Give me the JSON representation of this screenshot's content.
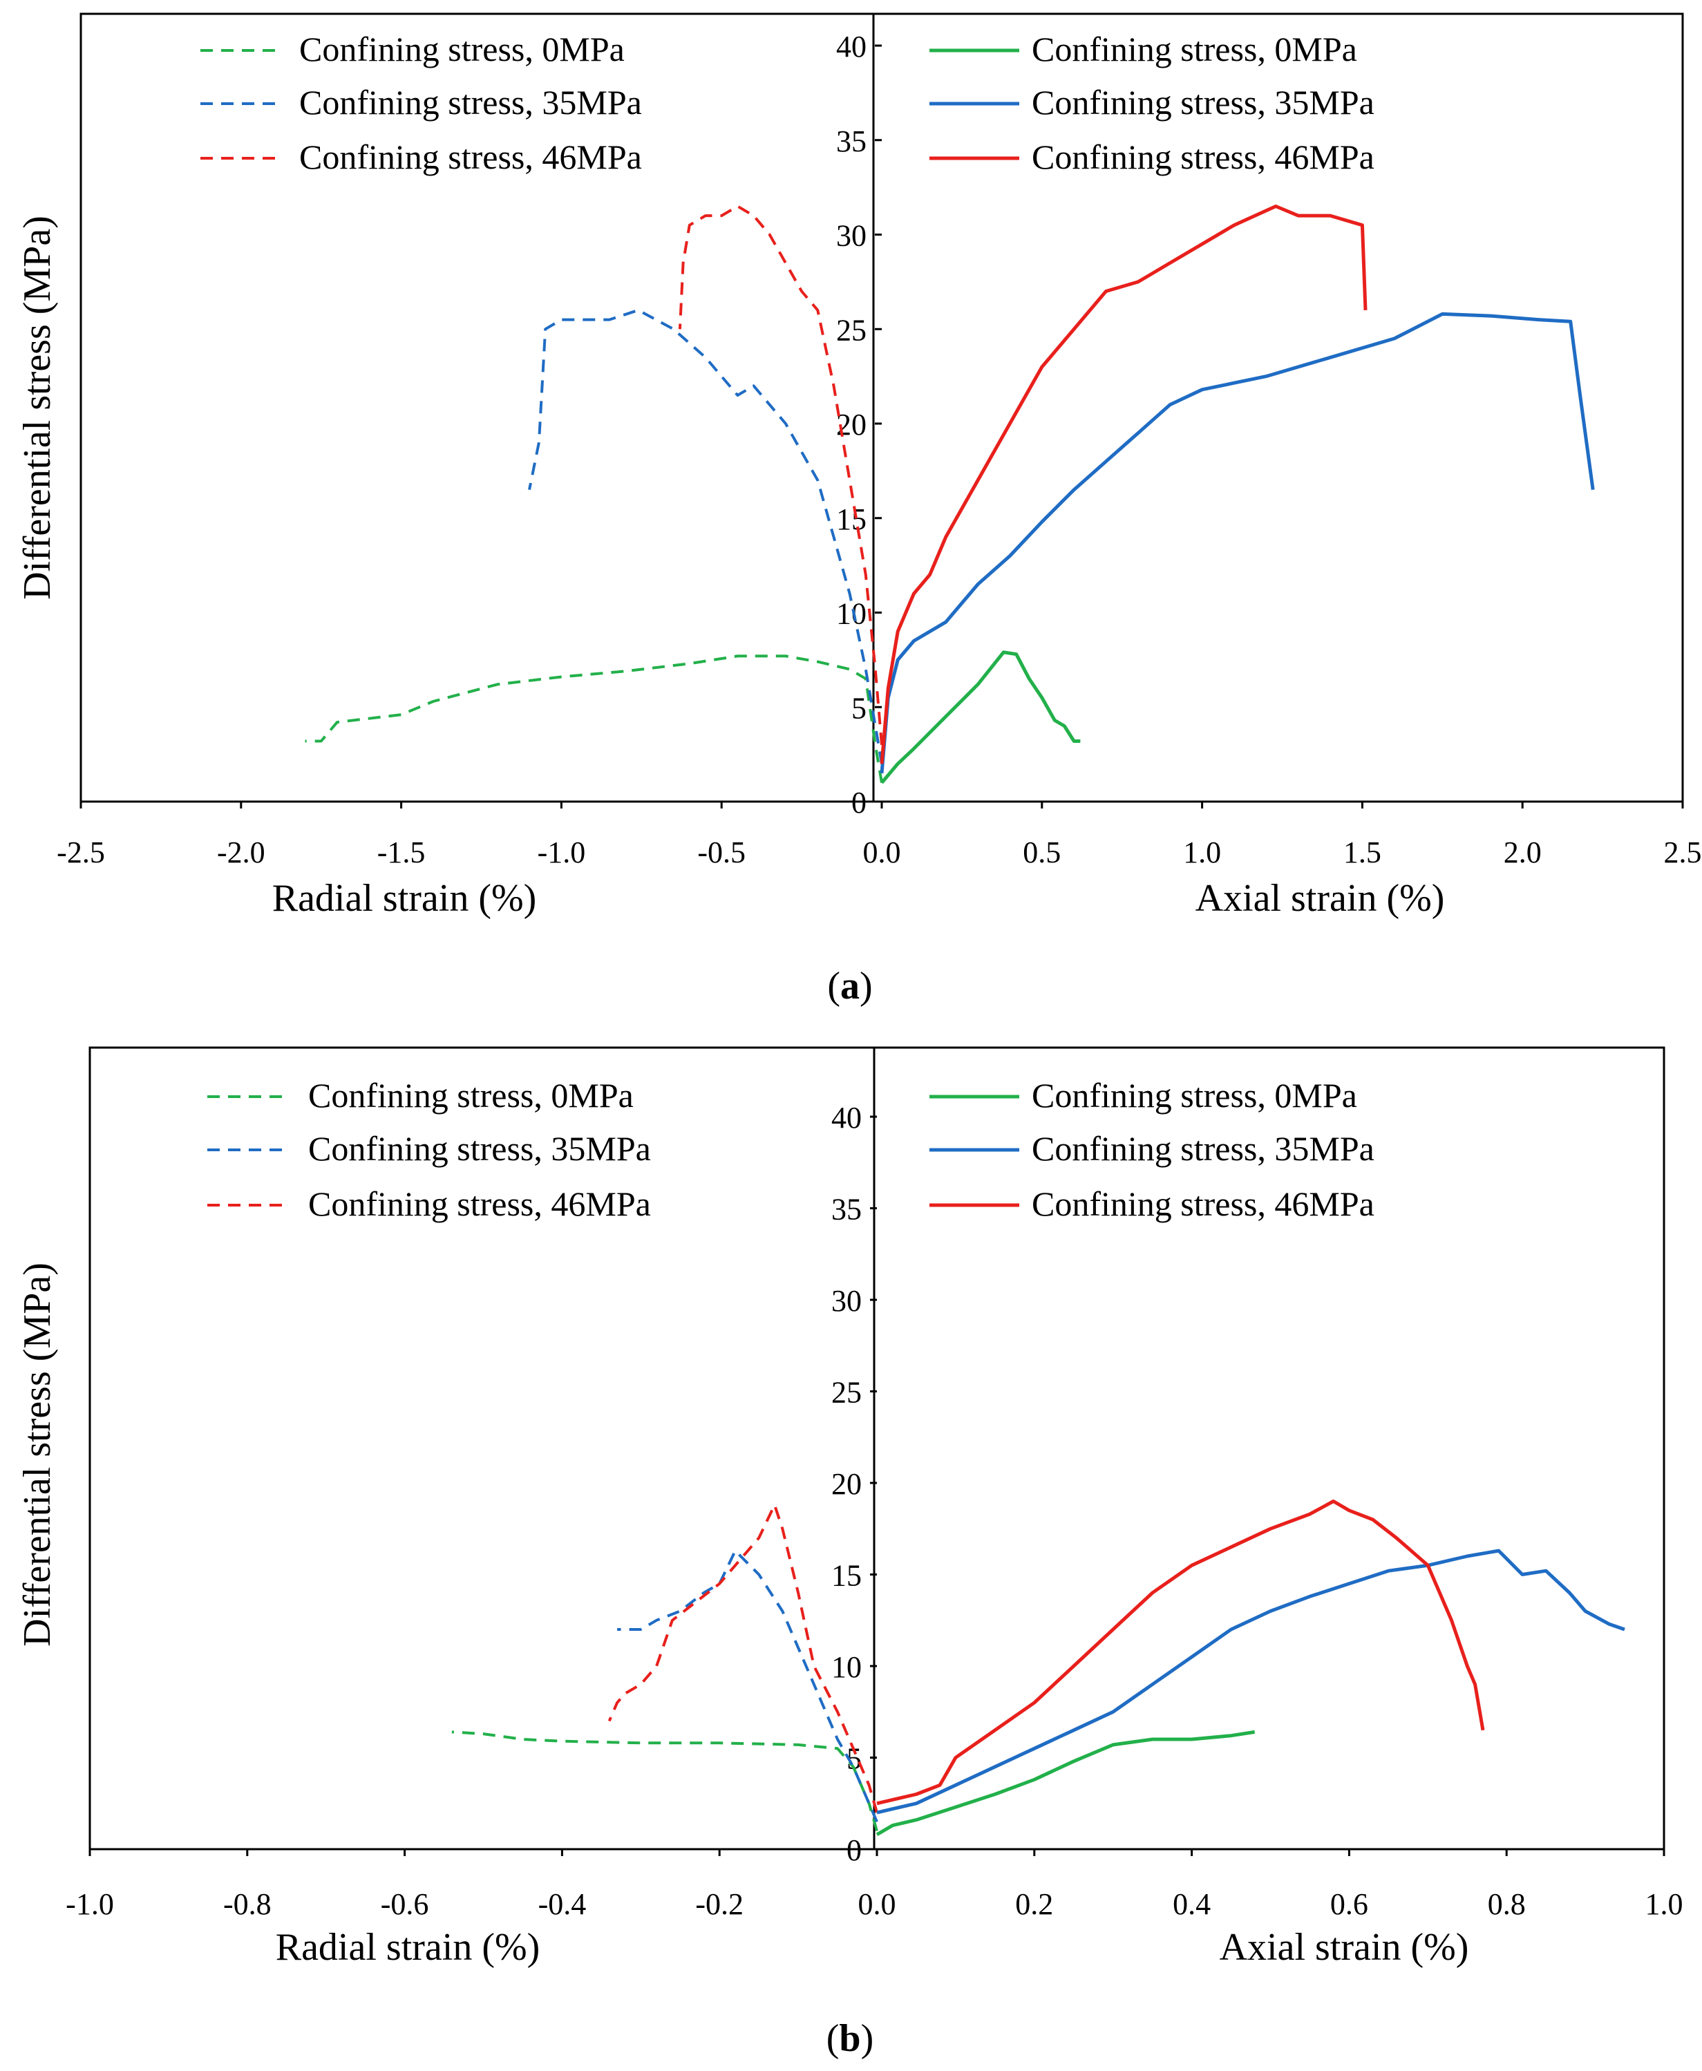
{
  "chart_data": [
    {
      "id": "a",
      "type": "line",
      "caption_open": "(",
      "caption_letter": "a",
      "caption_close": ")",
      "ylabel": "Differential stress (MPa)",
      "xlabel_left": "Radial strain (%)",
      "xlabel_right": "Axial strain (%)",
      "xlim": [
        -2.5,
        2.5
      ],
      "ylim": [
        0,
        43
      ],
      "xticks": [
        "-2.5",
        "-2.0",
        "-1.5",
        "-1.0",
        "-0.5",
        "0.0",
        "0.5",
        "1.0",
        "1.5",
        "2.0",
        "2.5"
      ],
      "xtick_values": [
        -2.5,
        -2.0,
        -1.5,
        -1.0,
        -0.5,
        0.0,
        0.5,
        1.0,
        1.5,
        2.0,
        2.5
      ],
      "yticks": [
        "0",
        "5",
        "10",
        "15",
        "20",
        "25",
        "30",
        "35",
        "40"
      ],
      "ytick_values": [
        0,
        5,
        10,
        15,
        20,
        25,
        30,
        35,
        40
      ],
      "legend_left": [
        "Confining stress, 0MPa",
        "Confining stress, 35MPa",
        "Confining stress, 46MPa"
      ],
      "legend_right": [
        "Confining stress, 0MPa",
        "Confining stress, 35MPa",
        "Confining stress, 46MPa"
      ],
      "series": [
        {
          "name": "Confining stress, 0MPa",
          "kind": "radial",
          "color": "#22b04a",
          "dashed": true,
          "x": [
            0.0,
            -0.02,
            -0.05,
            -0.1,
            -0.2,
            -0.3,
            -0.45,
            -0.6,
            -0.8,
            -1.0,
            -1.2,
            -1.4,
            -1.5,
            -1.6,
            -1.7,
            -1.75,
            -1.8
          ],
          "y": [
            1.0,
            3.0,
            6.5,
            7.0,
            7.4,
            7.7,
            7.7,
            7.3,
            6.9,
            6.6,
            6.2,
            5.3,
            4.6,
            4.4,
            4.2,
            3.2,
            3.2
          ]
        },
        {
          "name": "Confining stress, 35MPa",
          "kind": "radial",
          "color": "#1f6cc4",
          "dashed": true,
          "x": [
            0.0,
            -0.02,
            -0.05,
            -0.1,
            -0.15,
            -0.2,
            -0.3,
            -0.4,
            -0.45,
            -0.55,
            -0.65,
            -0.76,
            -0.85,
            -1.0,
            -1.05,
            -1.07,
            -1.1
          ],
          "y": [
            2.0,
            4.0,
            7.0,
            11.0,
            14.0,
            17.0,
            20.0,
            22.0,
            21.5,
            23.5,
            25.0,
            26.0,
            25.5,
            25.5,
            25.0,
            19.0,
            16.5
          ]
        },
        {
          "name": "Confining stress, 46MPa",
          "kind": "radial",
          "color": "#e8201c",
          "dashed": true,
          "x": [
            0.0,
            -0.02,
            -0.05,
            -0.1,
            -0.15,
            -0.2,
            -0.25,
            -0.3,
            -0.35,
            -0.4,
            -0.45,
            -0.5,
            -0.55,
            -0.6,
            -0.62,
            -0.63,
            -0.63
          ],
          "y": [
            3.0,
            7.0,
            12.0,
            17.0,
            22.0,
            26.0,
            27.0,
            28.5,
            30.0,
            31.0,
            31.5,
            31.0,
            31.0,
            30.5,
            28.5,
            25.0,
            25.0
          ]
        },
        {
          "name": "Confining stress, 0MPa",
          "kind": "axial",
          "color": "#22b04a",
          "dashed": false,
          "x": [
            0.0,
            0.05,
            0.1,
            0.2,
            0.3,
            0.38,
            0.42,
            0.46,
            0.5,
            0.54,
            0.57,
            0.6,
            0.62
          ],
          "y": [
            1.0,
            2.0,
            2.8,
            4.5,
            6.2,
            7.9,
            7.8,
            6.5,
            5.5,
            4.3,
            4.0,
            3.2,
            3.2
          ]
        },
        {
          "name": "Confining stress, 35MPa",
          "kind": "axial",
          "color": "#1f6cc4",
          "dashed": false,
          "x": [
            0.0,
            0.02,
            0.05,
            0.1,
            0.2,
            0.3,
            0.4,
            0.5,
            0.6,
            0.7,
            0.8,
            0.9,
            1.0,
            1.2,
            1.4,
            1.6,
            1.75,
            1.9,
            2.05,
            2.15,
            2.18,
            2.2,
            2.22
          ],
          "y": [
            1.5,
            5.5,
            7.5,
            8.5,
            9.5,
            11.5,
            13.0,
            14.8,
            16.5,
            18.0,
            19.5,
            21.0,
            21.8,
            22.5,
            23.5,
            24.5,
            25.8,
            25.7,
            25.5,
            25.4,
            21.5,
            19.0,
            16.5
          ]
        },
        {
          "name": "Confining stress, 46MPa",
          "kind": "axial",
          "color": "#e8201c",
          "dashed": false,
          "x": [
            0.0,
            0.02,
            0.05,
            0.1,
            0.15,
            0.2,
            0.3,
            0.4,
            0.5,
            0.6,
            0.7,
            0.8,
            0.9,
            1.0,
            1.1,
            1.23,
            1.3,
            1.4,
            1.5,
            1.51
          ],
          "y": [
            2.0,
            6.0,
            9.0,
            11.0,
            12.0,
            14.0,
            17.0,
            20.0,
            23.0,
            25.0,
            27.0,
            27.5,
            28.5,
            29.5,
            30.5,
            31.5,
            31.0,
            31.0,
            30.5,
            26.0
          ]
        }
      ]
    },
    {
      "id": "b",
      "type": "line",
      "caption_open": "(",
      "caption_letter": "b",
      "caption_close": ")",
      "ylabel": "Differential stress (MPa)",
      "xlabel_left": "Radial strain (%)",
      "xlabel_right": "Axial strain (%)",
      "xlim": [
        -1.0,
        1.0
      ],
      "ylim": [
        0,
        43
      ],
      "xticks": [
        "-1.0",
        "-0.8",
        "-0.6",
        "-0.4",
        "-0.2",
        "0.0",
        "0.2",
        "0.4",
        "0.6",
        "0.8",
        "1.0"
      ],
      "xtick_values": [
        -1.0,
        -0.8,
        -0.6,
        -0.4,
        -0.2,
        0.0,
        0.2,
        0.4,
        0.6,
        0.8,
        1.0
      ],
      "yticks": [
        "0",
        "5",
        "10",
        "15",
        "20",
        "25",
        "30",
        "35",
        "40"
      ],
      "ytick_values": [
        0,
        5,
        10,
        15,
        20,
        25,
        30,
        35,
        40
      ],
      "legend_left": [
        "Confining stress, 0MPa",
        "Confining stress, 35MPa",
        "Confining stress, 46MPa"
      ],
      "legend_right": [
        "Confining stress, 0MPa",
        "Confining stress, 35MPa",
        "Confining stress, 46MPa"
      ],
      "series": [
        {
          "name": "Confining stress, 0MPa",
          "kind": "radial",
          "color": "#22b04a",
          "dashed": true,
          "x": [
            0.0,
            -0.01,
            -0.03,
            -0.05,
            -0.1,
            -0.2,
            -0.3,
            -0.4,
            -0.45,
            -0.5,
            -0.54
          ],
          "y": [
            1.0,
            2.5,
            4.5,
            5.5,
            5.7,
            5.8,
            5.8,
            5.9,
            6.0,
            6.3,
            6.4
          ]
        },
        {
          "name": "Confining stress, 35MPa",
          "kind": "radial",
          "color": "#1f6cc4",
          "dashed": true,
          "x": [
            0.0,
            -0.01,
            -0.03,
            -0.05,
            -0.08,
            -0.1,
            -0.12,
            -0.15,
            -0.18,
            -0.2,
            -0.22,
            -0.25,
            -0.28,
            -0.3,
            -0.33
          ],
          "y": [
            1.5,
            2.5,
            4.5,
            6.0,
            9.0,
            11.0,
            13.0,
            15.0,
            16.3,
            14.5,
            14.0,
            13.0,
            12.5,
            12.0,
            12.0
          ]
        },
        {
          "name": "Confining stress, 46MPa",
          "kind": "radial",
          "color": "#e8201c",
          "dashed": true,
          "x": [
            0.0,
            -0.01,
            -0.03,
            -0.05,
            -0.08,
            -0.1,
            -0.12,
            -0.13,
            -0.15,
            -0.18,
            -0.2,
            -0.23,
            -0.26,
            -0.28,
            -0.3,
            -0.32,
            -0.33,
            -0.34
          ],
          "y": [
            2.0,
            3.5,
            5.5,
            7.5,
            10.0,
            14.0,
            17.5,
            18.8,
            17.0,
            15.5,
            14.5,
            13.5,
            12.5,
            10.0,
            9.0,
            8.5,
            8.0,
            7.0
          ]
        },
        {
          "name": "Confining stress, 0MPa",
          "kind": "axial",
          "color": "#22b04a",
          "dashed": false,
          "x": [
            0.0,
            0.02,
            0.05,
            0.1,
            0.15,
            0.2,
            0.25,
            0.3,
            0.35,
            0.4,
            0.45,
            0.48
          ],
          "y": [
            0.8,
            1.3,
            1.6,
            2.3,
            3.0,
            3.8,
            4.8,
            5.7,
            6.0,
            6.0,
            6.2,
            6.4
          ]
        },
        {
          "name": "Confining stress, 35MPa",
          "kind": "axial",
          "color": "#1f6cc4",
          "dashed": false,
          "x": [
            0.0,
            0.02,
            0.05,
            0.1,
            0.15,
            0.2,
            0.25,
            0.3,
            0.35,
            0.4,
            0.45,
            0.5,
            0.55,
            0.6,
            0.65,
            0.7,
            0.75,
            0.79,
            0.82,
            0.85,
            0.88,
            0.9,
            0.93,
            0.95
          ],
          "y": [
            2.0,
            2.2,
            2.5,
            3.5,
            4.5,
            5.5,
            6.5,
            7.5,
            9.0,
            10.5,
            12.0,
            13.0,
            13.8,
            14.5,
            15.2,
            15.5,
            16.0,
            16.3,
            15.0,
            15.2,
            14.0,
            13.0,
            12.3,
            12.0
          ]
        },
        {
          "name": "Confining stress, 46MPa",
          "kind": "axial",
          "color": "#e8201c",
          "dashed": false,
          "x": [
            0.0,
            0.02,
            0.05,
            0.08,
            0.1,
            0.15,
            0.2,
            0.25,
            0.3,
            0.35,
            0.4,
            0.45,
            0.5,
            0.55,
            0.58,
            0.6,
            0.63,
            0.66,
            0.7,
            0.73,
            0.75,
            0.76,
            0.77
          ],
          "y": [
            2.5,
            2.7,
            3.0,
            3.5,
            5.0,
            6.5,
            8.0,
            10.0,
            12.0,
            14.0,
            15.5,
            16.5,
            17.5,
            18.3,
            19.0,
            18.5,
            18.0,
            17.0,
            15.5,
            12.5,
            10.0,
            9.0,
            6.5
          ]
        }
      ]
    }
  ]
}
